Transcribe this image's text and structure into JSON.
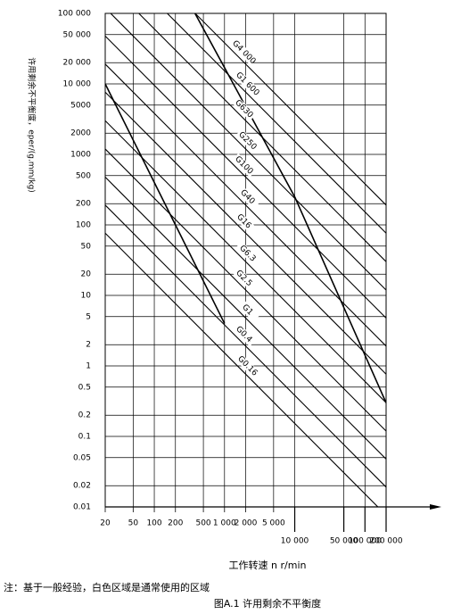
{
  "chart_data": {
    "type": "line",
    "xscale": "log",
    "yscale": "log",
    "grid": true,
    "color": "#000000",
    "xlabel": "工作转速 n r/min",
    "ylabel": "许用剩余不平衡度，eper/(g.mm/kg)",
    "note": "注：基于一般经验，白色区域是通常使用的区域",
    "caption": "图A.1 许用剩余不平衡度",
    "xlim": [
      20,
      200000
    ],
    "ylim": [
      0.01,
      100000
    ],
    "xticks": [
      20,
      50,
      100,
      200,
      500,
      {
        "value": 1000,
        "label": "1 000"
      },
      {
        "value": 2000,
        "label": "2 000"
      },
      {
        "value": 5000,
        "label": "5 000"
      },
      {
        "value": 10000,
        "label": "10 000"
      },
      {
        "value": 50000,
        "label": "50 000"
      },
      {
        "value": 100000,
        "label": "100 000"
      },
      {
        "value": 200000,
        "label": "200 000"
      }
    ],
    "yticks": [
      0.01,
      0.02,
      0.05,
      0.1,
      0.2,
      0.5,
      1,
      2,
      5,
      10,
      20,
      50,
      100,
      200,
      500,
      1000,
      2000,
      5000,
      {
        "value": 10000,
        "label": "10 000"
      },
      {
        "value": 20000,
        "label": "20 000"
      },
      {
        "value": 50000,
        "label": "50 000"
      },
      {
        "value": 100000,
        "label": "100 000"
      }
    ],
    "series": [
      {
        "name": "G4 000",
        "x": [
          382,
          200000
        ],
        "values": [
          100000,
          191
        ]
      },
      {
        "name": "G1 600",
        "x": [
          153,
          200000
        ],
        "values": [
          100000,
          76.4
        ]
      },
      {
        "name": "G630",
        "x": [
          60.2,
          200000
        ],
        "values": [
          100000,
          30.1
        ]
      },
      {
        "name": "G250",
        "x": [
          23.9,
          200000
        ],
        "values": [
          100000,
          11.9
        ]
      },
      {
        "name": "G100",
        "x": [
          20,
          200000
        ],
        "values": [
          47746,
          4.77
        ]
      },
      {
        "name": "G40",
        "x": [
          20,
          200000
        ],
        "values": [
          19099,
          1.91
        ]
      },
      {
        "name": "G16",
        "x": [
          20,
          200000
        ],
        "values": [
          7639,
          0.764
        ]
      },
      {
        "name": "G6.3",
        "x": [
          20,
          200000
        ],
        "values": [
          3008,
          0.301
        ]
      },
      {
        "name": "G2.5",
        "x": [
          20,
          200000
        ],
        "values": [
          1194,
          0.119
        ]
      },
      {
        "name": "G1",
        "x": [
          20,
          200000
        ],
        "values": [
          477,
          0.0477
        ]
      },
      {
        "name": "G0.4",
        "x": [
          20,
          200000
        ],
        "values": [
          191,
          0.0191
        ]
      },
      {
        "name": "G0.16",
        "x": [
          20,
          152800
        ],
        "values": [
          76.4,
          0.01
        ]
      }
    ],
    "region_boundaries": [
      {
        "x": [
          20,
          1000
        ],
        "values": [
          10000,
          4
        ]
      },
      {
        "x": [
          380,
          10000,
          200000
        ],
        "values": [
          100000,
          250,
          0.3
        ]
      }
    ]
  }
}
